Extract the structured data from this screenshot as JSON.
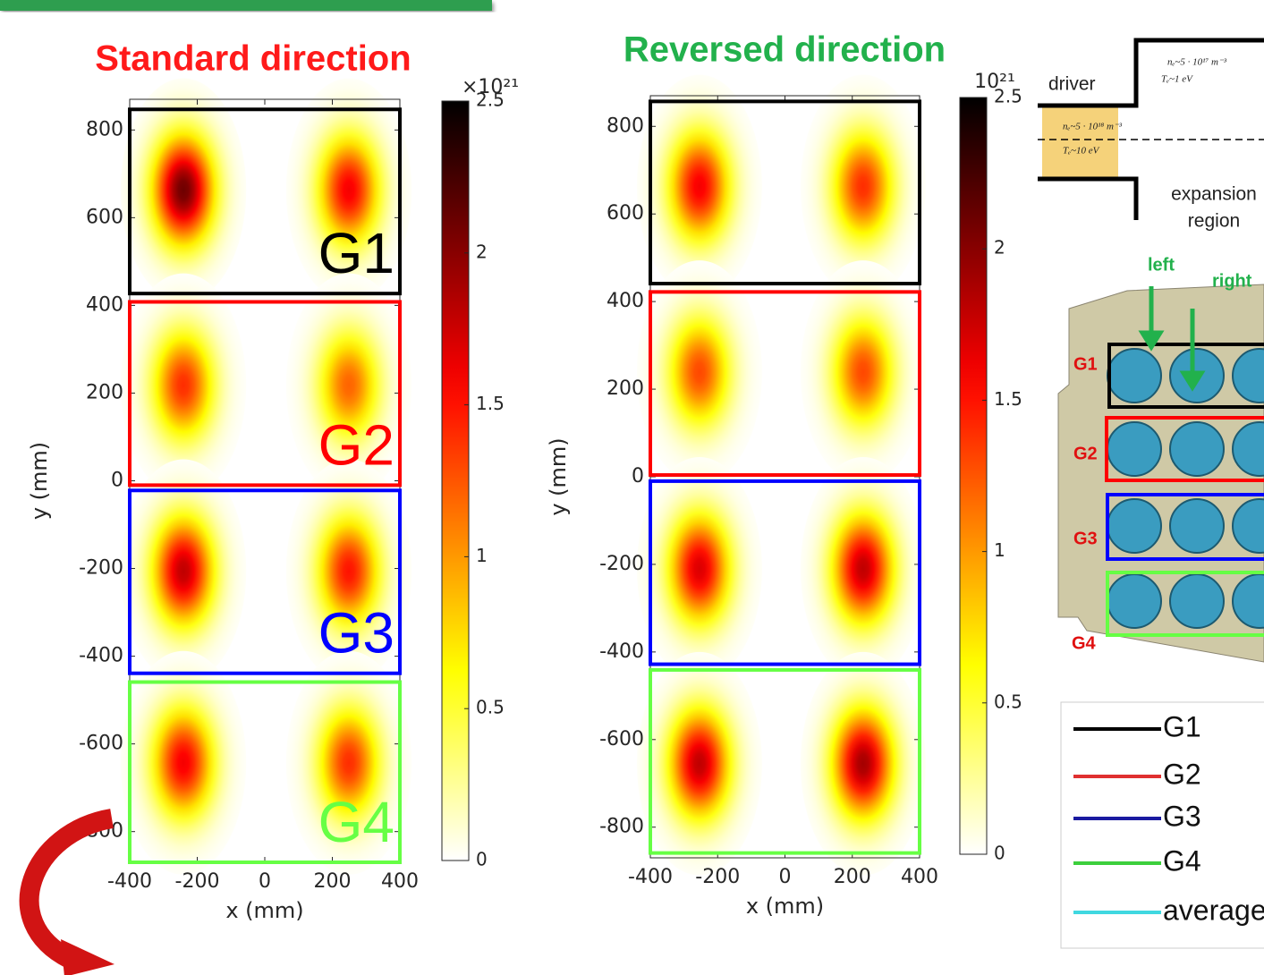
{
  "chart_data": [
    {
      "type": "heatmap",
      "title": "Standard direction",
      "title_color": "#ff1a1a",
      "xlabel": "x (mm)",
      "ylabel": "y (mm)",
      "xlim": [
        -400,
        400
      ],
      "ylim": [
        -870,
        870
      ],
      "xticks": [
        -400,
        -200,
        0,
        200,
        400
      ],
      "yticks": [
        -800,
        -600,
        -400,
        -200,
        0,
        200,
        400,
        600,
        800
      ],
      "clim": [
        0,
        2.5
      ],
      "cticks": [
        0,
        0.5,
        1,
        1.5,
        2,
        2.5
      ],
      "multiplier_label": "×10²¹",
      "groups": [
        {
          "label": "G1",
          "color": "#000000",
          "y_range": [
            427,
            847
          ],
          "blobs": [
            {
              "x": -241,
              "y": 663,
              "peak": 2.1
            },
            {
              "x": 249,
              "y": 663,
              "peak": 1.6
            }
          ]
        },
        {
          "label": "G2",
          "color": "#ff0000",
          "y_range": [
            -10,
            408
          ],
          "blobs": [
            {
              "x": -241,
              "y": 218,
              "peak": 1.4
            },
            {
              "x": 249,
              "y": 218,
              "peak": 1.2
            }
          ]
        },
        {
          "label": "G3",
          "color": "#0000ff",
          "y_range": [
            -439,
            -22
          ],
          "blobs": [
            {
              "x": -241,
              "y": -206,
              "peak": 1.8
            },
            {
              "x": 249,
              "y": -206,
              "peak": 1.5
            }
          ]
        },
        {
          "label": "G4",
          "color": "#66ff44",
          "y_range": [
            -870,
            -459
          ],
          "blobs": [
            {
              "x": -241,
              "y": -643,
              "peak": 1.6
            },
            {
              "x": 249,
              "y": -643,
              "peak": 1.4
            }
          ]
        }
      ]
    },
    {
      "type": "heatmap",
      "title": "Reversed direction",
      "title_color": "#22b14c",
      "xlabel": "x (mm)",
      "ylabel": "y (mm)",
      "xlim": [
        -400,
        400
      ],
      "ylim": [
        -870,
        870
      ],
      "xticks": [
        -400,
        -200,
        0,
        200,
        400
      ],
      "yticks": [
        -800,
        -600,
        -400,
        -200,
        0,
        200,
        400,
        600,
        800
      ],
      "clim": [
        0,
        2.5
      ],
      "cticks": [
        0,
        0.5,
        1,
        1.5,
        2,
        2.5
      ],
      "multiplier_label": "10²¹",
      "groups": [
        {
          "color": "#000000",
          "y_range": [
            441,
            857
          ],
          "blobs": [
            {
              "x": -254,
              "y": 663,
              "peak": 1.6
            },
            {
              "x": 232,
              "y": 663,
              "peak": 1.4
            }
          ]
        },
        {
          "color": "#ff0000",
          "y_range": [
            4,
            422
          ],
          "blobs": [
            {
              "x": -254,
              "y": 239,
              "peak": 1.3
            },
            {
              "x": 232,
              "y": 239,
              "peak": 1.3
            }
          ]
        },
        {
          "color": "#0000ff",
          "y_range": [
            -428,
            -10
          ],
          "blobs": [
            {
              "x": -254,
              "y": -210,
              "peak": 1.7
            },
            {
              "x": 232,
              "y": -210,
              "peak": 1.8
            }
          ]
        },
        {
          "color": "#66ff44",
          "y_range": [
            -859,
            -441
          ],
          "blobs": [
            {
              "x": -254,
              "y": -655,
              "peak": 1.8
            },
            {
              "x": 232,
              "y": -655,
              "peak": 1.9
            }
          ]
        }
      ]
    }
  ],
  "diagram": {
    "driver": "driver",
    "plasma_outer": [
      "nₑ~5 · 10¹⁷ m⁻³",
      "Tₑ~1 eV"
    ],
    "plasma_driver": [
      "nₑ~5 · 10¹⁸ m⁻³",
      "Tₑ~10 eV"
    ],
    "expansion": [
      "expansion",
      "region"
    ],
    "arrows": [
      "left",
      "right"
    ],
    "groups": [
      "G1",
      "G2",
      "G3",
      "G4"
    ]
  },
  "legend": {
    "entries": [
      {
        "label": "G1",
        "color": "#000000"
      },
      {
        "label": "G2",
        "color": "#e03030"
      },
      {
        "label": "G3",
        "color": "#1a1aa0"
      },
      {
        "label": "G4",
        "color": "#3ccf3c"
      },
      {
        "label": "average",
        "color": "#40d8e0"
      }
    ]
  }
}
